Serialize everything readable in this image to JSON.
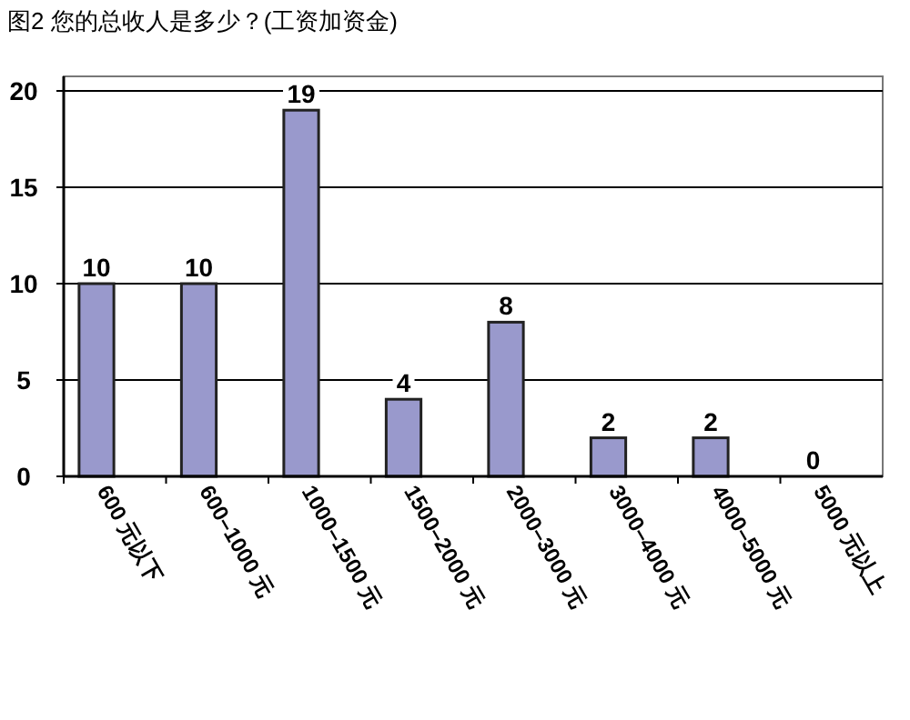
{
  "chart_data": {
    "type": "bar",
    "title": "图2 您的总收人是多少？(工资加资金)",
    "categories": [
      "600 元以下",
      "600–1000 元",
      "1000–1500 元",
      "1500–2000 元",
      "2000–3000 元",
      "3000–4000 元",
      "4000–5000 元",
      "5000 元以上"
    ],
    "values": [
      10,
      10,
      19,
      4,
      8,
      2,
      2,
      0
    ],
    "color": "#9999cc",
    "ylim": [
      0,
      20
    ],
    "yticks": [
      0,
      5,
      10,
      15,
      20
    ],
    "grid": "y",
    "data_labels": true
  }
}
